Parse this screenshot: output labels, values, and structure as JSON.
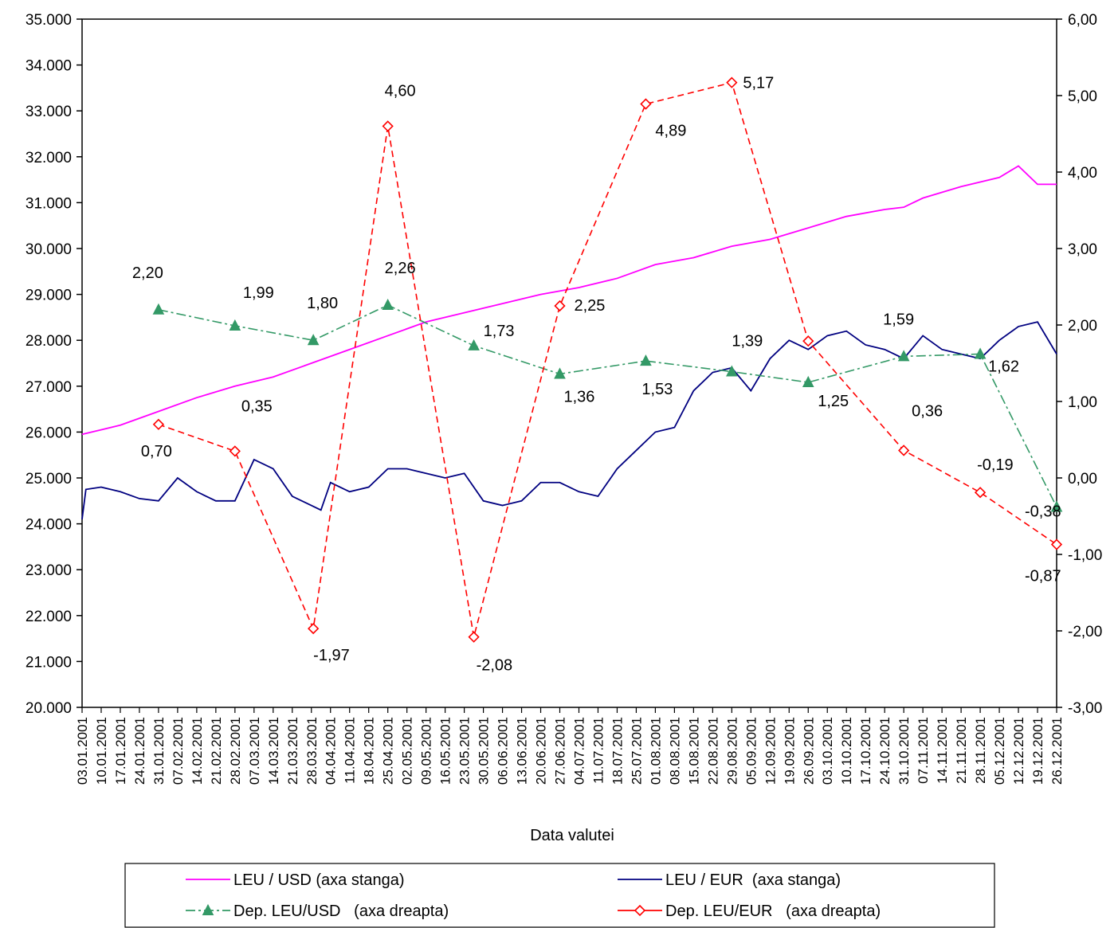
{
  "chart_data": {
    "type": "line",
    "xlabel": "Data valutei",
    "x_ticks": [
      "03.01.2001",
      "10.01.2001",
      "17.01.2001",
      "24.01.2001",
      "31.01.2001",
      "07.02.2001",
      "14.02.2001",
      "21.02.2001",
      "28.02.2001",
      "07.03.2001",
      "14.03.2001",
      "21.03.2001",
      "28.03.2001",
      "04.04.2001",
      "11.04.2001",
      "18.04.2001",
      "25.04.2001",
      "02.05.2001",
      "09.05.2001",
      "16.05.2001",
      "23.05.2001",
      "30.05.2001",
      "06.06.2001",
      "13.06.2001",
      "20.06.2001",
      "27.06.2001",
      "04.07.2001",
      "11.07.2001",
      "18.07.2001",
      "25.07.2001",
      "01.08.2001",
      "08.08.2001",
      "15.08.2001",
      "22.08.2001",
      "29.08.2001",
      "05.09.2001",
      "12.09.2001",
      "19.09.2001",
      "26.09.2001",
      "03.10.2001",
      "10.10.2001",
      "17.10.2001",
      "24.10.2001",
      "31.10.2001",
      "07.11.2001",
      "14.11.2001",
      "21.11.2001",
      "28.11.2001",
      "05.12.2001",
      "12.12.2001",
      "19.12.2001",
      "26.12.2001"
    ],
    "y_left": {
      "range": [
        20000,
        35000
      ],
      "ticks": [
        "20.000",
        "21.000",
        "22.000",
        "23.000",
        "24.000",
        "25.000",
        "26.000",
        "27.000",
        "28.000",
        "29.000",
        "30.000",
        "31.000",
        "32.000",
        "33.000",
        "34.000",
        "35.000"
      ]
    },
    "y_right": {
      "range": [
        -3,
        6
      ],
      "ticks": [
        "-3,00",
        "-2,00",
        "-1,00",
        "0,00",
        "1,00",
        "2,00",
        "3,00",
        "4,00",
        "5,00",
        "6,00"
      ]
    },
    "series": [
      {
        "name": "LEU / USD (axa stanga)",
        "axis": "left",
        "color": "#ff00ff",
        "style": "solid",
        "points": [
          [
            0,
            25950
          ],
          [
            2,
            26150
          ],
          [
            4,
            26450
          ],
          [
            6,
            26750
          ],
          [
            8,
            27000
          ],
          [
            10,
            27200
          ],
          [
            12,
            27500
          ],
          [
            14,
            27800
          ],
          [
            16,
            28100
          ],
          [
            18,
            28400
          ],
          [
            20,
            28600
          ],
          [
            22,
            28800
          ],
          [
            24,
            29000
          ],
          [
            26,
            29150
          ],
          [
            28,
            29350
          ],
          [
            30,
            29650
          ],
          [
            32,
            29800
          ],
          [
            34,
            30050
          ],
          [
            36,
            30200
          ],
          [
            38,
            30450
          ],
          [
            40,
            30700
          ],
          [
            42,
            30850
          ],
          [
            43,
            30900
          ],
          [
            44,
            31100
          ],
          [
            46,
            31350
          ],
          [
            48,
            31550
          ],
          [
            49,
            31800
          ],
          [
            50,
            31400
          ],
          [
            51,
            31400
          ]
        ]
      },
      {
        "name": "LEU / EUR  (axa stanga)",
        "axis": "left",
        "color": "#000080",
        "style": "solid",
        "points": [
          [
            0,
            24100
          ],
          [
            0.2,
            24750
          ],
          [
            1,
            24800
          ],
          [
            2,
            24700
          ],
          [
            3,
            24550
          ],
          [
            4,
            24500
          ],
          [
            5,
            25000
          ],
          [
            6,
            24700
          ],
          [
            7,
            24500
          ],
          [
            8,
            24500
          ],
          [
            9,
            25400
          ],
          [
            10,
            25200
          ],
          [
            11,
            24600
          ],
          [
            12,
            24400
          ],
          [
            12.5,
            24300
          ],
          [
            13,
            24900
          ],
          [
            14,
            24700
          ],
          [
            15,
            24800
          ],
          [
            16,
            25200
          ],
          [
            17,
            25200
          ],
          [
            18,
            25100
          ],
          [
            19,
            25000
          ],
          [
            20,
            25100
          ],
          [
            21,
            24500
          ],
          [
            22,
            24400
          ],
          [
            23,
            24500
          ],
          [
            24,
            24900
          ],
          [
            25,
            24900
          ],
          [
            26,
            24700
          ],
          [
            27,
            24600
          ],
          [
            28,
            25200
          ],
          [
            29,
            25600
          ],
          [
            30,
            26000
          ],
          [
            31,
            26100
          ],
          [
            32,
            26900
          ],
          [
            33,
            27300
          ],
          [
            34,
            27400
          ],
          [
            35,
            26900
          ],
          [
            36,
            27600
          ],
          [
            37,
            28000
          ],
          [
            38,
            27800
          ],
          [
            39,
            28100
          ],
          [
            40,
            28200
          ],
          [
            41,
            27900
          ],
          [
            42,
            27800
          ],
          [
            43,
            27600
          ],
          [
            44,
            28100
          ],
          [
            45,
            27800
          ],
          [
            46,
            27700
          ],
          [
            47,
            27600
          ],
          [
            48,
            28000
          ],
          [
            49,
            28300
          ],
          [
            50,
            28400
          ],
          [
            51,
            27700
          ]
        ]
      },
      {
        "name": "Dep. LEU/USD   (axa dreapta)",
        "axis": "right",
        "color": "#339966",
        "style": "dashdot",
        "marker": "triangle",
        "points": [
          [
            4,
            2.2
          ],
          [
            8,
            1.99
          ],
          [
            12.1,
            1.8
          ],
          [
            16,
            2.26
          ],
          [
            20.5,
            1.73
          ],
          [
            25,
            1.36
          ],
          [
            29.5,
            1.53
          ],
          [
            34,
            1.39
          ],
          [
            38,
            1.25
          ],
          [
            43,
            1.59
          ],
          [
            47,
            1.62
          ],
          [
            51,
            -0.38
          ]
        ],
        "labels": [
          "2,20",
          "1,99",
          "1,80",
          "2,26",
          "1,73",
          "1,36",
          "1,53",
          "1,39",
          "1,25",
          "1,59",
          "1,62",
          "-0,38"
        ]
      },
      {
        "name": "Dep. LEU/EUR   (axa dreapta)",
        "axis": "right",
        "color": "#ff0000",
        "style": "dashed",
        "marker": "diamond",
        "points": [
          [
            4,
            0.7
          ],
          [
            8,
            0.35
          ],
          [
            12.1,
            -1.97
          ],
          [
            16,
            4.6
          ],
          [
            20.5,
            -2.08
          ],
          [
            25,
            2.25
          ],
          [
            29.5,
            4.89
          ],
          [
            34,
            5.17
          ],
          [
            38,
            1.79
          ],
          [
            43,
            0.36
          ],
          [
            47,
            -0.19
          ],
          [
            51,
            -0.87
          ]
        ],
        "labels": [
          "0,70",
          "0,35",
          "-1,97",
          "4,60",
          "-2,08",
          "2,25",
          "4,89",
          "5,17",
          "",
          "0,36",
          "-0,19",
          "-0,87"
        ]
      }
    ]
  }
}
